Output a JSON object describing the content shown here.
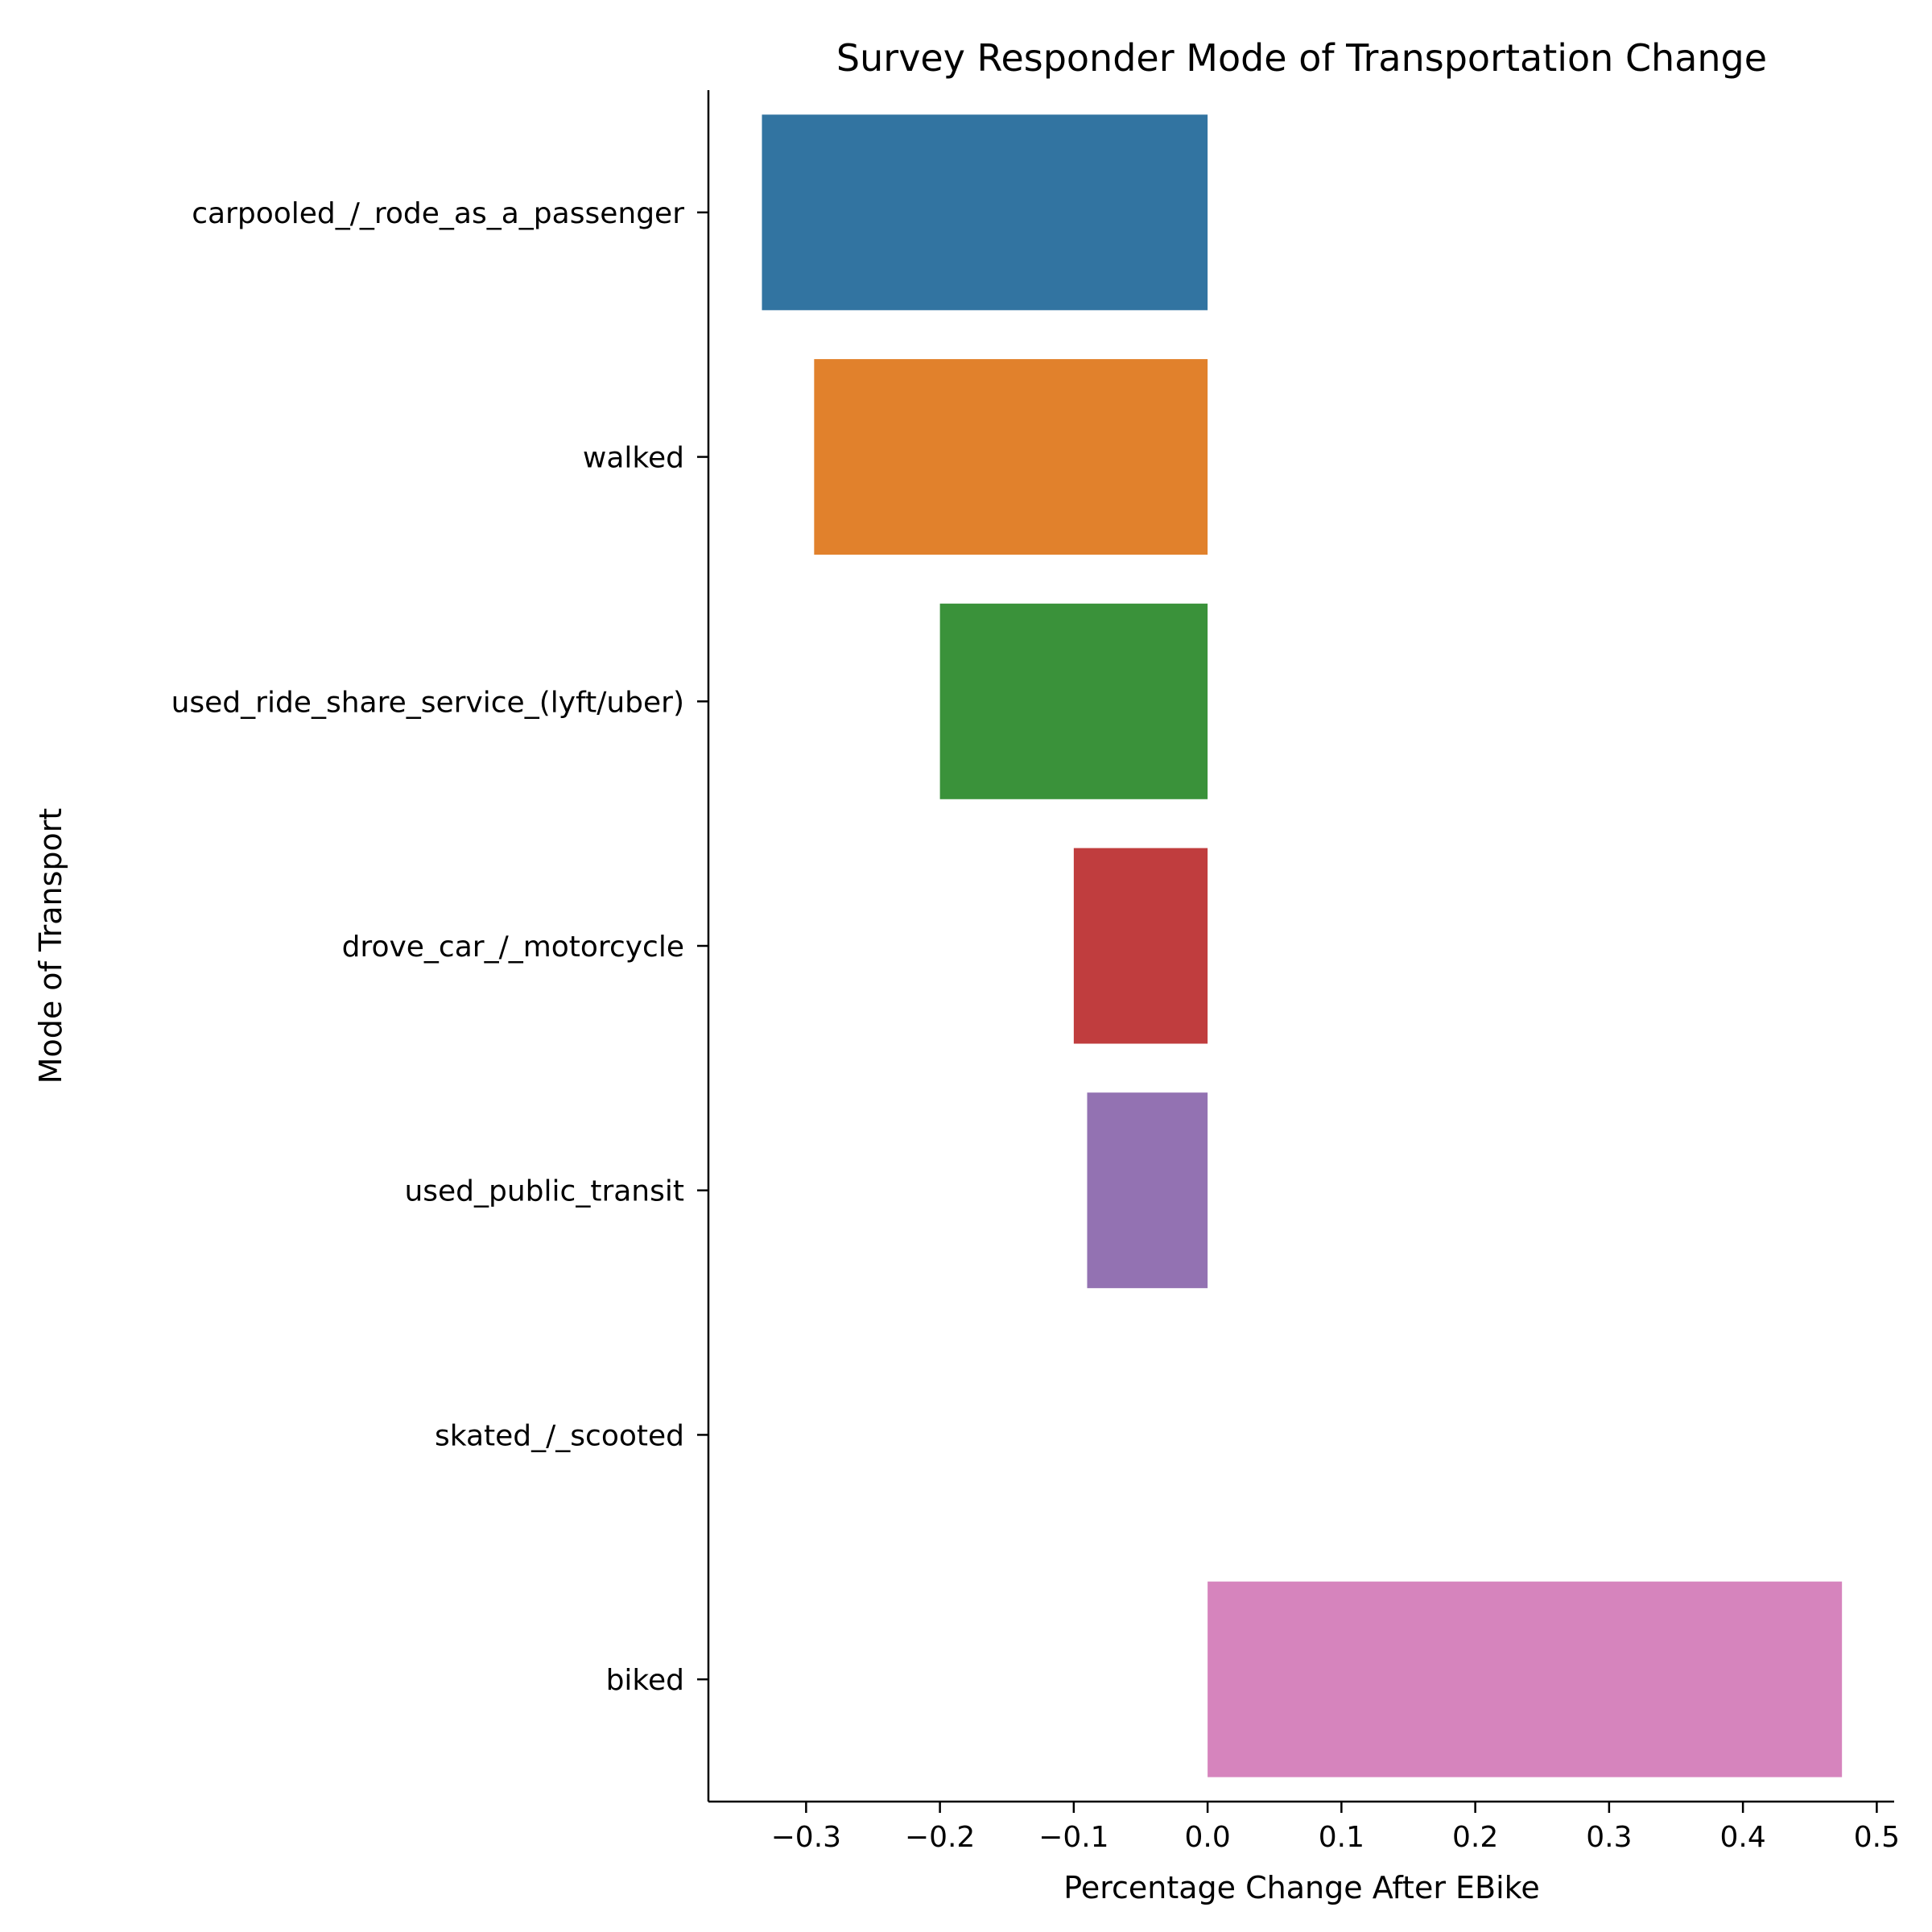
{
  "chart_data": {
    "type": "bar",
    "orientation": "horizontal",
    "title": "Survey Responder Mode of Transportation Change",
    "xlabel": "Percentage Change After EBike",
    "ylabel": "Mode of Transport",
    "categories": [
      "carpooled_/_rode_as_a_passenger",
      "walked",
      "used_ride_share_service_(lyft/uber)",
      "drove_car_/_motorcycle",
      "used_public_transit",
      "skated_/_scooted",
      "biked"
    ],
    "values": [
      -0.333,
      -0.294,
      -0.2,
      -0.1,
      -0.09,
      0.0,
      0.474
    ],
    "colors": [
      "#3274a1",
      "#e1812c",
      "#3a923a",
      "#c03d3e",
      "#9372b2",
      "#845b53",
      "#d684bd"
    ],
    "xlim": [
      -0.373,
      0.513
    ],
    "xticks": [
      -0.3,
      -0.2,
      -0.1,
      0.0,
      0.1,
      0.2,
      0.3,
      0.4,
      0.5
    ],
    "xtick_labels": [
      "−0.3",
      "−0.2",
      "−0.1",
      "0.0",
      "0.1",
      "0.2",
      "0.3",
      "0.4",
      "0.5"
    ],
    "grid": false,
    "legend": "none"
  }
}
